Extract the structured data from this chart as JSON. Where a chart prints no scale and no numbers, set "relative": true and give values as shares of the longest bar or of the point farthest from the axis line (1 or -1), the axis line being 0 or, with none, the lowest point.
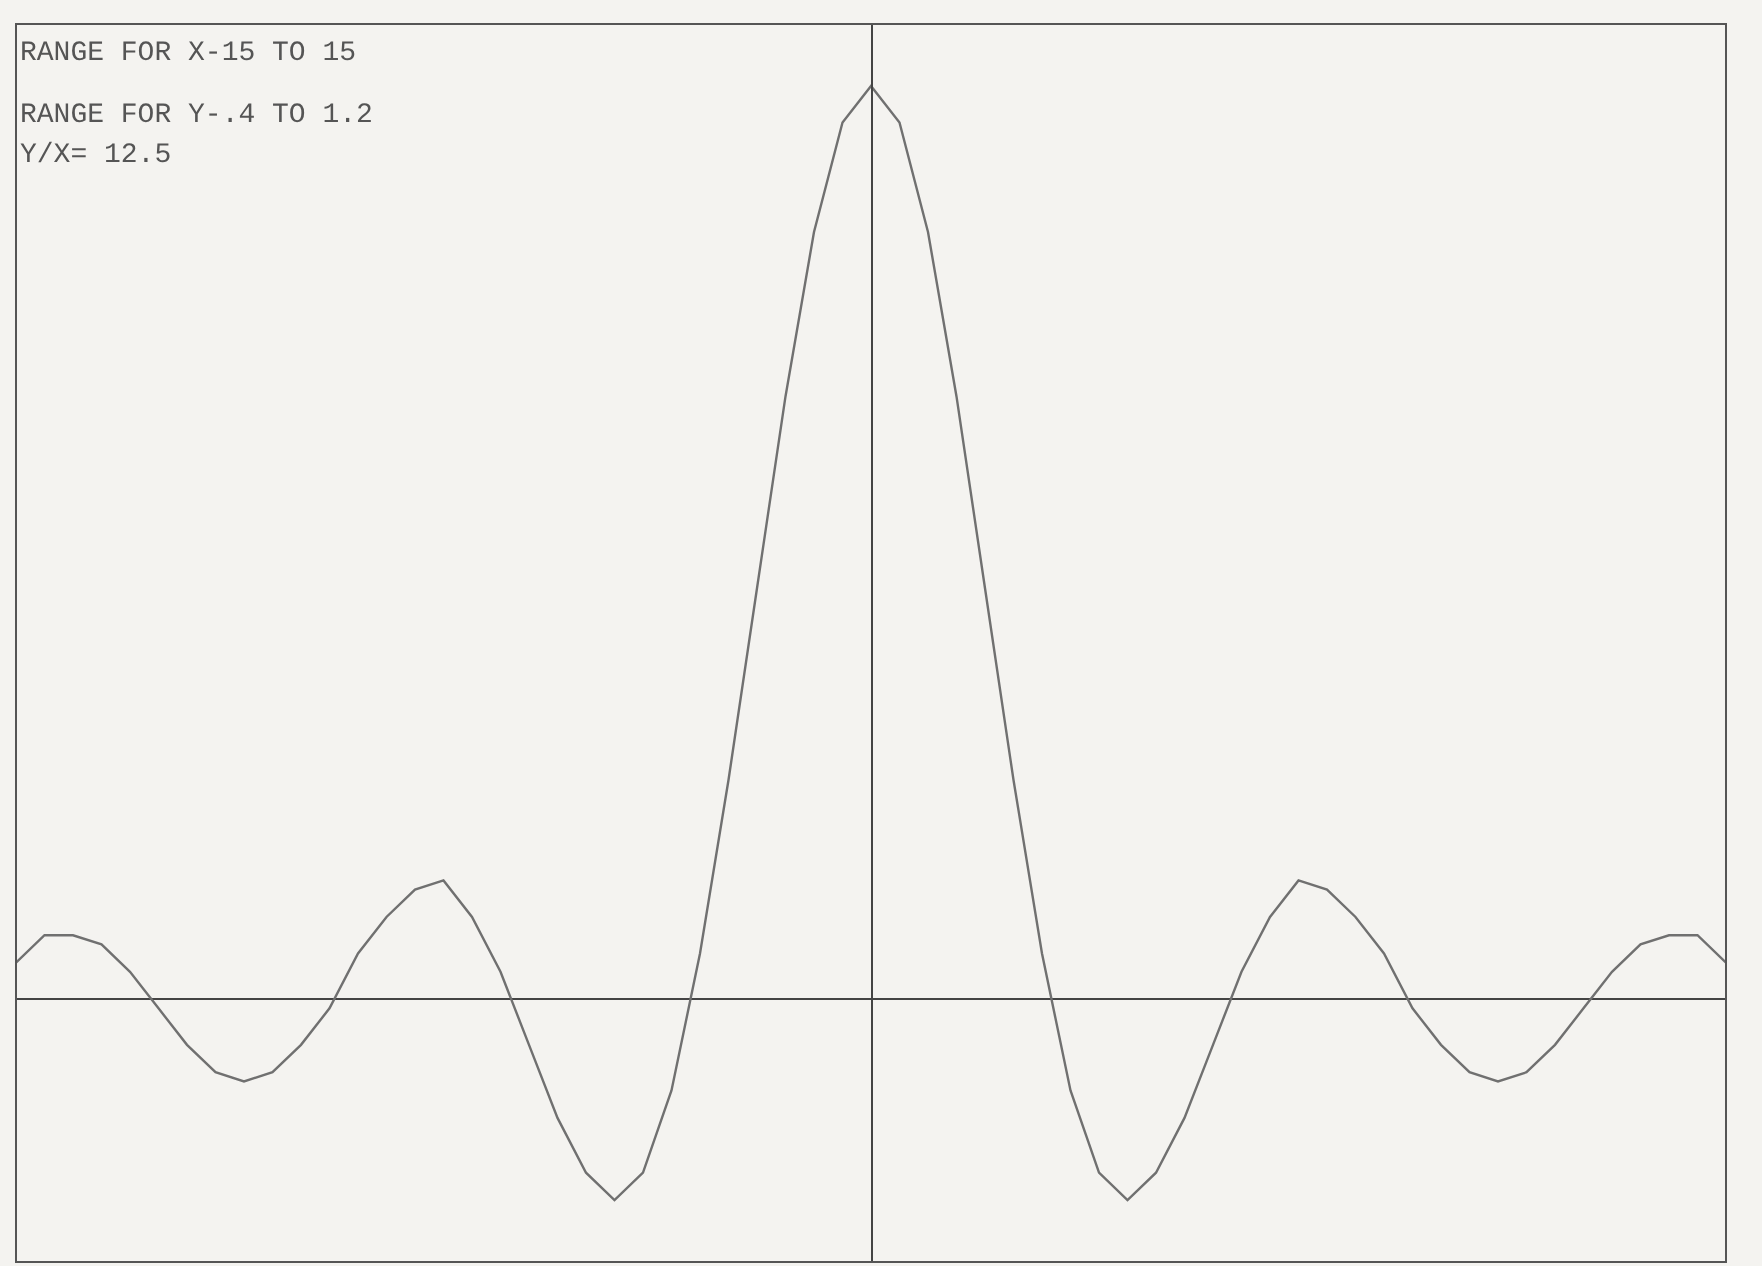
{
  "chart_data": {
    "type": "line",
    "relative": true,
    "annotations": [
      "RANGE FOR X-15 TO 15",
      "RANGE FOR Y-.4 TO 1.2",
      "Y/X= 12.5"
    ],
    "categories": [
      null,
      null,
      null,
      null,
      null,
      null,
      null,
      null,
      null,
      null,
      null,
      null,
      null,
      null,
      null,
      null,
      null,
      null,
      null,
      null,
      null,
      null,
      null,
      null,
      null,
      null,
      null,
      null,
      null,
      null,
      null,
      null,
      null,
      null,
      null,
      null,
      null,
      null,
      null,
      null,
      null,
      null,
      null,
      null,
      null,
      null,
      null,
      null,
      null,
      null,
      null,
      null,
      null,
      null,
      null,
      null,
      null,
      null,
      null,
      null,
      null
    ],
    "series": [
      {
        "color": "#707070",
        "values": [
          0.04,
          0.07,
          0.07,
          0.06,
          0.03,
          -0.01,
          -0.05,
          -0.08,
          -0.09,
          -0.08,
          -0.05,
          -0.01,
          0.05,
          0.09,
          0.12,
          0.13,
          0.09,
          0.03,
          -0.05,
          -0.13,
          -0.19,
          -0.22,
          -0.19,
          -0.1,
          0.05,
          0.24,
          0.45,
          0.66,
          0.84,
          0.96,
          1.0,
          0.96,
          0.84,
          0.66,
          0.45,
          0.24,
          0.05,
          -0.1,
          -0.19,
          -0.22,
          -0.19,
          -0.13,
          -0.05,
          0.03,
          0.09,
          0.13,
          0.12,
          0.09,
          0.05,
          -0.01,
          -0.05,
          -0.08,
          -0.09,
          -0.08,
          -0.05,
          -0.01,
          0.03,
          0.06,
          0.07,
          0.07,
          0.04
        ]
      }
    ],
    "marker": "none",
    "line_style": "solid"
  }
}
